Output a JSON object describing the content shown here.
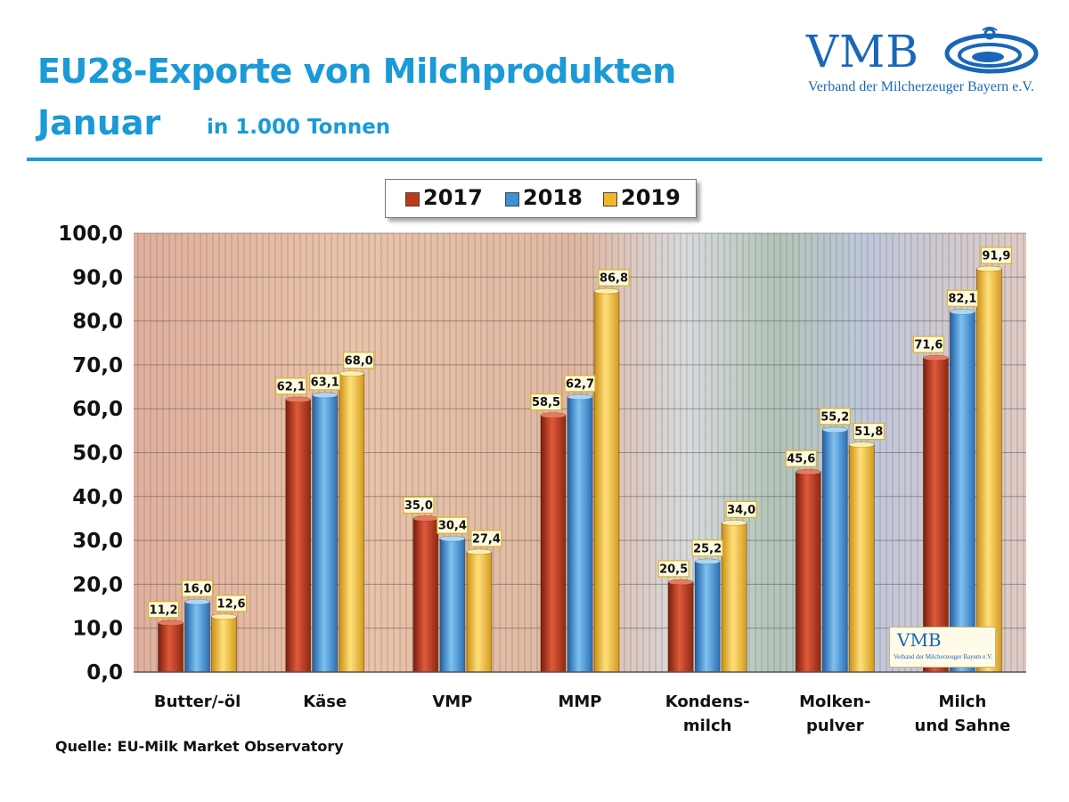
{
  "header": {
    "title_line1": "EU28-Exporte von Milchprodukten",
    "title_line2": "Januar",
    "subtitle": "in 1.000 Tonnen"
  },
  "logo": {
    "text": "VMB",
    "subtitle": "Verband der Milcherzeuger Bayern e.V."
  },
  "source": "Quelle: EU-Milk Market Observatory",
  "colors": {
    "title": "#1a9ad6",
    "s2017": "#c0391b",
    "s2018": "#3d8fd6",
    "s2019": "#f0b82a"
  },
  "chart_data": {
    "type": "bar",
    "title": "EU28-Exporte von Milchprodukten Januar",
    "ylabel": "in 1.000 Tonnen",
    "ylim": [
      0,
      100
    ],
    "yticks": [
      "0,0",
      "10,0",
      "20,0",
      "30,0",
      "40,0",
      "50,0",
      "60,0",
      "70,0",
      "80,0",
      "90,0",
      "100,0"
    ],
    "grid": true,
    "legend_position": "top-center",
    "categories": [
      [
        "Butter/-öl"
      ],
      [
        "Käse"
      ],
      [
        "VMP"
      ],
      [
        "MMP"
      ],
      [
        "Kondens-",
        "milch"
      ],
      [
        "Molken-",
        "pulver"
      ],
      [
        "Milch",
        "und Sahne"
      ]
    ],
    "series": [
      {
        "name": "2017",
        "values": [
          11.2,
          62.1,
          35.0,
          58.5,
          20.5,
          45.6,
          71.6
        ],
        "labels": [
          "11,2",
          "62,1",
          "35,0",
          "58,5",
          "20,5",
          "45,6",
          "71,6"
        ]
      },
      {
        "name": "2018",
        "values": [
          16.0,
          63.1,
          30.4,
          62.7,
          25.2,
          55.2,
          82.1
        ],
        "labels": [
          "16,0",
          "63,1",
          "30,4",
          "62,7",
          "25,2",
          "55,2",
          "82,1"
        ]
      },
      {
        "name": "2019",
        "values": [
          12.6,
          68.0,
          27.4,
          86.8,
          34.0,
          51.8,
          91.9
        ],
        "labels": [
          "12,6",
          "68,0",
          "27,4",
          "86,8",
          "34,0",
          "51,8",
          "91,9"
        ]
      }
    ]
  }
}
